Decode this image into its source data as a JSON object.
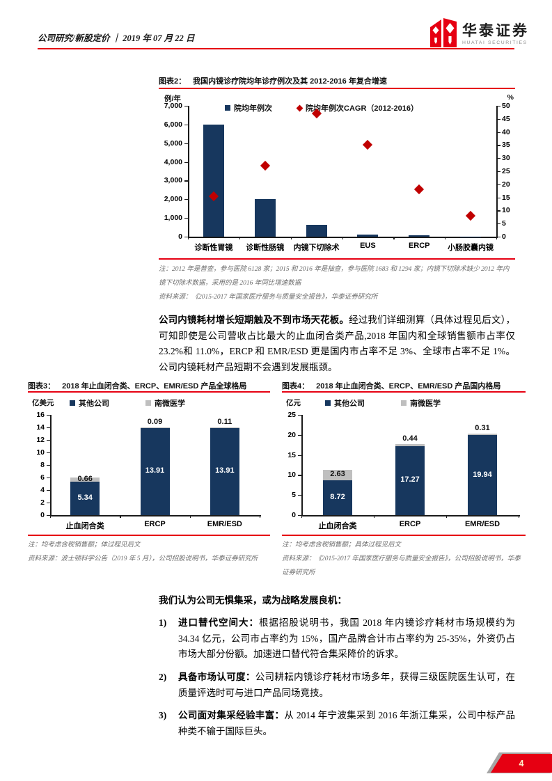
{
  "header": {
    "breadcrumb": "公司研究/新股定价",
    "divider": "｜",
    "date": "2019 年 07 月 22 日",
    "logo_cn": "华泰证券",
    "logo_en": "HUATAI SECURITIES"
  },
  "colors": {
    "navy": "#17375E",
    "series_gray": "#BFBFBF",
    "diamond_red": "#C00000",
    "accent_red": "#E60012",
    "note_gray": "#6E6E6E"
  },
  "figure2": {
    "label": "图表2：",
    "title": "我国内镜诊疗院均年诊疗例次及其 2012-2016 年复合增速",
    "unit_left": "例/年",
    "unit_right": "%",
    "note": "注：2012 年是普查，参与医院 6128 家；2015 和 2016 年是抽查，参与医院 1683 和 1294 家；内镜下切除术缺少 2012 年内镜下切除术数据，采用的是 2016 年同比增速数据",
    "source": "资料来源：《2015-2017 年国家医疗服务与质量安全报告》，华泰证券研究所"
  },
  "paragraph1": {
    "lead": "公司内镜耗材增长短期触及不到市场天花板。",
    "body": "经过我们详细测算（具体过程见后文），可知即使是公司营收占比最大的止血闭合类产品,2018 年国内和全球销售额市占率仅 23.2%和 11.0%，ERCP 和 EMR/ESD 更是国内市占率不足 3%、全球市占率不足 1%。公司内镜耗材产品短期不会遇到发展瓶颈。"
  },
  "figure3": {
    "label": "图表3：",
    "title": "2018 年止血闭合类、ERCP、EMR/ESD 产品全球格局",
    "unit": "亿美元",
    "note": "注：均考虑含税销售额；体过程见后文",
    "source": "资料来源：波士顿科学公告（2019 年 5 月），公司招股说明书，华泰证券研究所"
  },
  "figure4": {
    "label": "图表4：",
    "title": "2018 年止血闭合类、ERCP、EMR/ESD 产品国内格局",
    "unit": "亿元",
    "note": "注：均考虑含税销售额；具体过程见后文",
    "source": "资料来源：《2015-2017 年国家医疗服务与质量安全报告》，公司招股说明书，华泰证券研究所"
  },
  "section": {
    "heading": "我们认为公司无惧集采，或为战略发展良机：",
    "items": [
      {
        "num": "1)",
        "lead": "进口替代空间大：",
        "body": "根据招股说明书，我国 2018 年内镜诊疗耗材市场规模约为 34.34 亿元，公司市占率约为 15%，国产品牌合计市占率约为 25-35%，外资仍占市场大部分份额。加速进口替代符合集采降价的诉求。"
      },
      {
        "num": "2)",
        "lead": "具备市场认可度：",
        "body": "公司耕耘内镜诊疗耗材市场多年，获得三级医院医生认可，在质量评选时可与进口产品同场竞技。"
      },
      {
        "num": "3)",
        "lead": "公司面对集采经验丰富：",
        "body": "从 2014 年宁波集采到 2016 年浙江集采，公司中标产品种类不输于国际巨头。"
      }
    ]
  },
  "footer": {
    "page_number": "4"
  },
  "chart_data": [
    {
      "id": "figure2",
      "type": "bar",
      "title": "我国内镜诊疗院均年诊疗例次及其 2012-2016 年复合增速",
      "categories": [
        "诊断性胃镜",
        "诊断性肠镜",
        "内镜下切除术",
        "EUS",
        "ERCP",
        "小肠胶囊内镜"
      ],
      "series": [
        {
          "name": "院均年例次",
          "type": "bar",
          "axis": "left",
          "color": "#17375E",
          "values": [
            6000,
            2000,
            650,
            120,
            60,
            15
          ]
        },
        {
          "name": "院均年例次CAGR（2012-2016）",
          "type": "scatter",
          "axis": "right",
          "color": "#C00000",
          "values": [
            15.5,
            27,
            47,
            35,
            18,
            8
          ]
        }
      ],
      "left_axis": {
        "label": "例/年",
        "min": 0,
        "max": 7000,
        "step": 1000
      },
      "right_axis": {
        "label": "%",
        "min": 0,
        "max": 50,
        "step": 5
      },
      "legend_position": "top",
      "grid": false
    },
    {
      "id": "figure3",
      "type": "bar",
      "stacked": true,
      "title": "2018 年止血闭合类、ERCP、EMR/ESD 产品全球格局",
      "categories": [
        "止血闭合类",
        "ERCP",
        "EMR/ESD"
      ],
      "series": [
        {
          "name": "其他公司",
          "color": "#17375E",
          "values": [
            5.34,
            13.91,
            13.91
          ]
        },
        {
          "name": "南微医学",
          "color": "#BFBFBF",
          "values": [
            0.66,
            0.09,
            0.11
          ]
        }
      ],
      "ylabel": "亿美元",
      "ylim": [
        0,
        16
      ],
      "ystep": 2,
      "legend_position": "top",
      "grid": false
    },
    {
      "id": "figure4",
      "type": "bar",
      "stacked": true,
      "title": "2018 年止血闭合类、ERCP、EMR/ESD 产品国内格局",
      "categories": [
        "止血闭合类",
        "ERCP",
        "EMR/ESD"
      ],
      "series": [
        {
          "name": "其他公司",
          "color": "#17375E",
          "values": [
            8.72,
            17.27,
            19.94
          ]
        },
        {
          "name": "南微医学",
          "color": "#BFBFBF",
          "values": [
            2.63,
            0.44,
            0.31
          ]
        }
      ],
      "ylabel": "亿元",
      "ylim": [
        0,
        25
      ],
      "ystep": 5,
      "legend_position": "top",
      "grid": false
    }
  ]
}
